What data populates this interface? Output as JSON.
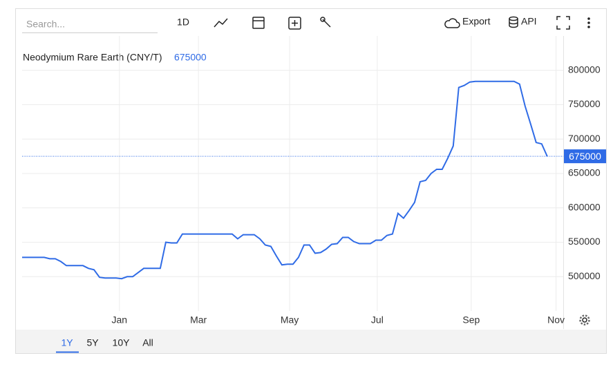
{
  "ui": {
    "search_placeholder": "Search...",
    "interval": "1D",
    "export": "Export",
    "api": "API",
    "ranges": [
      "1Y",
      "5Y",
      "10Y",
      "All"
    ]
  },
  "chart_data": {
    "type": "line",
    "title": "Neodymium Rare Earth (CNY/T)",
    "series": [
      {
        "name": "Neodymium Rare Earth",
        "color": "#2f6be6",
        "values": [
          528000,
          528000,
          528000,
          528000,
          528000,
          526000,
          526000,
          522000,
          516000,
          516000,
          516000,
          516000,
          512000,
          510000,
          499000,
          498000,
          498000,
          498000,
          497000,
          500000,
          500000,
          506000,
          512000,
          512000,
          512000,
          512000,
          550000,
          549000,
          549000,
          562000,
          562000,
          562000,
          562000,
          562000,
          562000,
          562000,
          562000,
          562000,
          562000,
          555000,
          561000,
          561000,
          561000,
          555000,
          546000,
          544000,
          530000,
          517000,
          518000,
          518000,
          528000,
          546000,
          546000,
          534000,
          535000,
          540000,
          547000,
          548000,
          557000,
          557000,
          551000,
          548000,
          548000,
          548000,
          553000,
          553000,
          560000,
          562000,
          592000,
          585000,
          596000,
          608000,
          638000,
          640000,
          650000,
          656000,
          656000,
          672000,
          690000,
          775000,
          778000,
          783000,
          784000,
          784000,
          784000,
          784000,
          784000,
          784000,
          784000,
          784000,
          780000,
          748000,
          722000,
          695000,
          693000,
          675000
        ]
      }
    ],
    "xlim": [
      0,
      97.9
    ],
    "xticks": [
      {
        "value": 17.6,
        "label": "Jan"
      },
      {
        "value": 31.9,
        "label": "Mar"
      },
      {
        "value": 48.4,
        "label": "May"
      },
      {
        "value": 64.25,
        "label": "Jul"
      },
      {
        "value": 81.25,
        "label": "Sep"
      },
      {
        "value": 96.6,
        "label": "Nov"
      }
    ],
    "ylim": [
      450000,
      850000
    ],
    "yticks": [
      500000,
      550000,
      600000,
      650000,
      700000,
      750000,
      800000
    ],
    "grid": true
  }
}
